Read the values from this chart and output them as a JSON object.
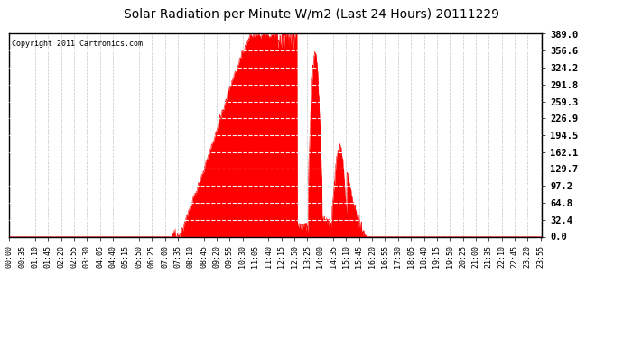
{
  "title": "Solar Radiation per Minute W/m2 (Last 24 Hours) 20111229",
  "copyright": "Copyright 2011 Cartronics.com",
  "background_color": "#ffffff",
  "plot_bg_color": "#ffffff",
  "fill_color": "#ff0000",
  "line_color": "#ff0000",
  "dashed_line_color": "#ff0000",
  "grid_color": "#aaaaaa",
  "ytick_labels": [
    "0.0",
    "32.4",
    "64.8",
    "97.2",
    "129.7",
    "162.1",
    "194.5",
    "226.9",
    "259.3",
    "291.8",
    "324.2",
    "356.6",
    "389.0"
  ],
  "ymax": 389.0,
  "ymin": 0.0,
  "num_minutes": 1440,
  "sunrise_minute": 460,
  "sunset_minute": 970,
  "peak_minute": 750,
  "peak_value": 389.0,
  "tick_step": 35
}
